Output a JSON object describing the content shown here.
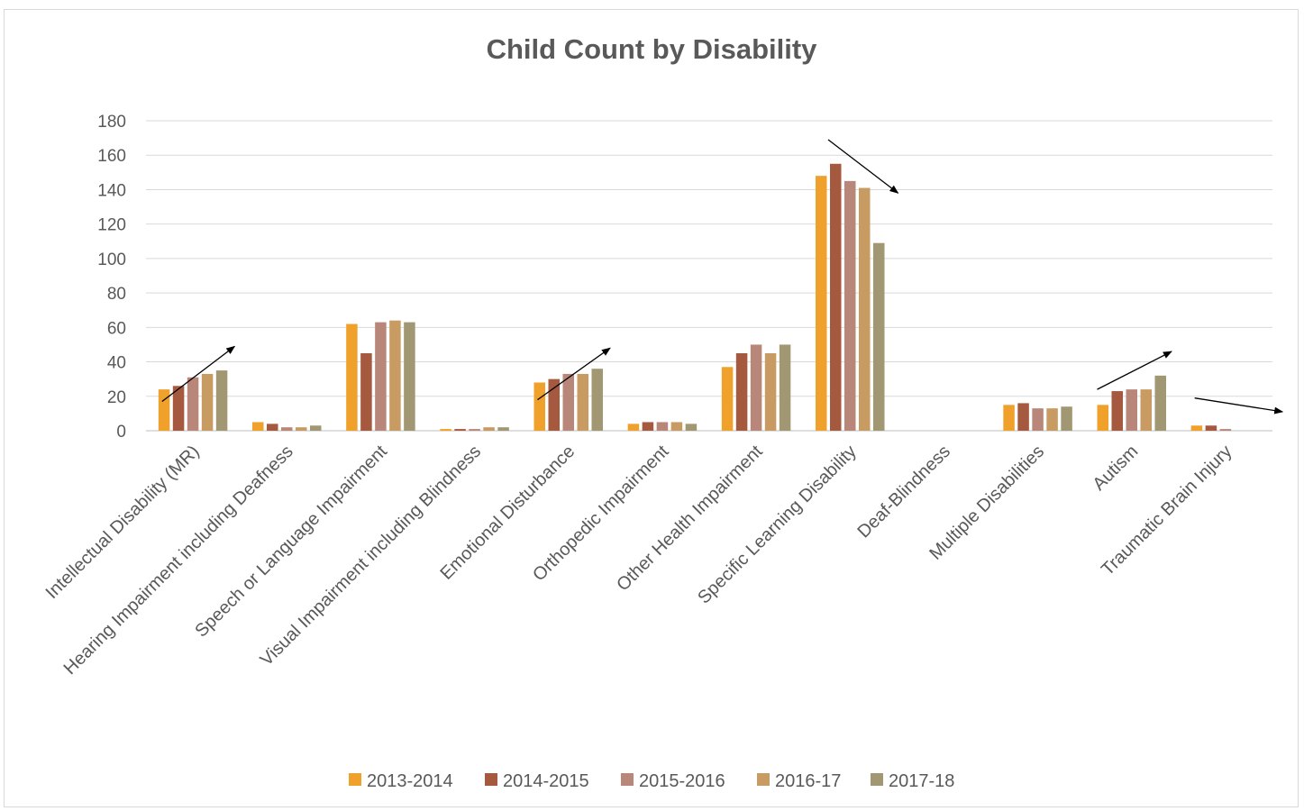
{
  "chart_data": {
    "type": "bar",
    "title": "Child Count by Disability",
    "xlabel": "",
    "ylabel": "",
    "ylim": [
      0,
      180
    ],
    "yticks": [
      0,
      20,
      40,
      60,
      80,
      100,
      120,
      140,
      160,
      180
    ],
    "grid": true,
    "legend_position": "bottom",
    "categories": [
      "Intellectual Disability (MR)",
      "Hearing Impairment including Deafness",
      "Speech or Language Impairment",
      "Visual Impairment including Blindness",
      "Emotional Disturbance",
      "Orthopedic Impairment",
      "Other Health Impairment",
      "Specific Learning Disability",
      "Deaf-Blindness",
      "Multiple Disabilities",
      "Autism",
      "Traumatic Brain Injury"
    ],
    "series": [
      {
        "name": "2013-2014",
        "color": "#F0A12B",
        "values": [
          24,
          5,
          62,
          1,
          28,
          4,
          37,
          148,
          0,
          15,
          15,
          3
        ]
      },
      {
        "name": "2014-2015",
        "color": "#A5593F",
        "values": [
          26,
          4,
          45,
          1,
          30,
          5,
          45,
          155,
          0,
          16,
          23,
          3
        ]
      },
      {
        "name": "2015-2016",
        "color": "#B9877A",
        "values": [
          31,
          2,
          63,
          1,
          33,
          5,
          50,
          145,
          0,
          13,
          24,
          1
        ]
      },
      {
        "name": "2016-17",
        "color": "#C89B62",
        "values": [
          33,
          2,
          64,
          2,
          33,
          5,
          45,
          141,
          0,
          13,
          24,
          0
        ]
      },
      {
        "name": "2017-18",
        "color": "#A19772",
        "values": [
          35,
          3,
          63,
          2,
          36,
          4,
          50,
          109,
          0,
          14,
          32,
          0
        ]
      }
    ],
    "annotations": [
      {
        "type": "arrow",
        "category": "Intellectual Disability (MR)",
        "trend": "up",
        "from": 17,
        "to": 49
      },
      {
        "type": "arrow",
        "category": "Emotional Disturbance",
        "trend": "up",
        "from": 18,
        "to": 48
      },
      {
        "type": "arrow",
        "category": "Specific Learning Disability",
        "trend": "down",
        "from": 169,
        "to": 138
      },
      {
        "type": "arrow",
        "category": "Autism",
        "trend": "up",
        "from": 24,
        "to": 46
      },
      {
        "type": "arrow",
        "category": "Traumatic Brain Injury",
        "trend": "down",
        "from": 19,
        "to": 11
      }
    ]
  }
}
